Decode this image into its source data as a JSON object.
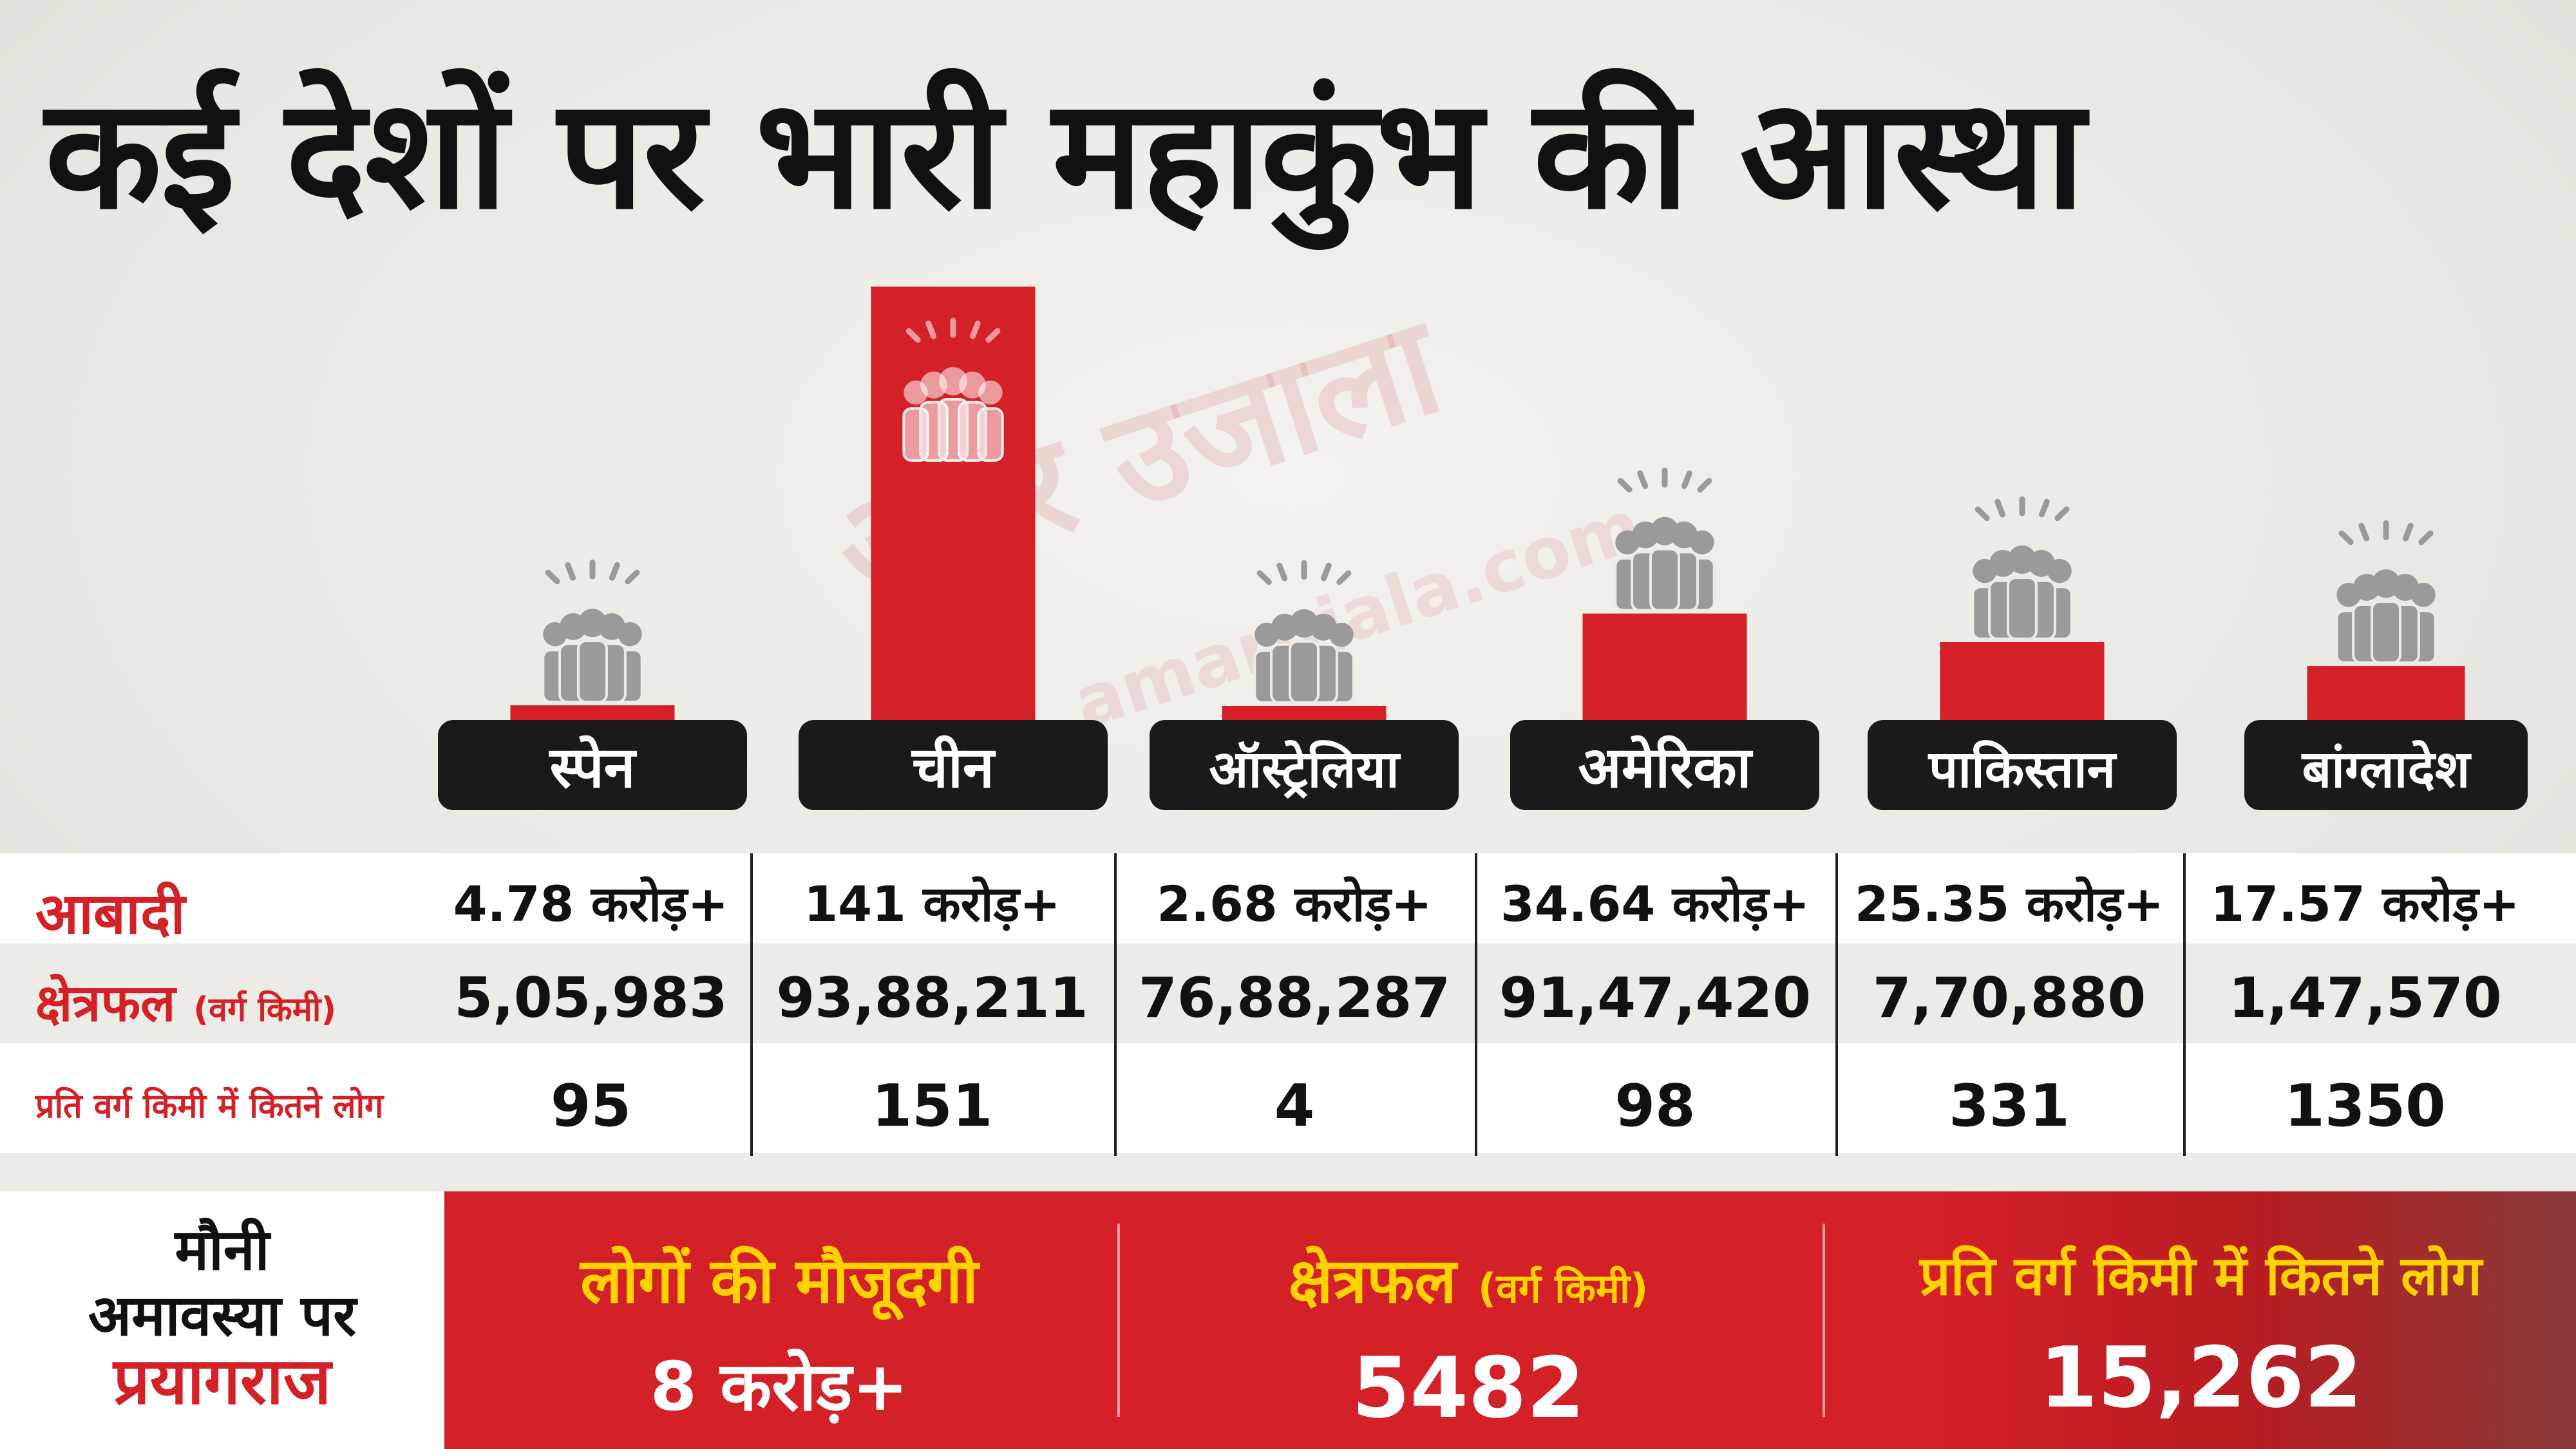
{
  "title": "कई देशों पर भारी महाकुंभ की आस्था",
  "watermark": {
    "brand": "अमर उजाला",
    "domain": "amarujala.com"
  },
  "colors": {
    "bar": "#d42027",
    "label_bg": "#1a1a1a",
    "label_text": "#ffffff",
    "accent_red": "#d42027",
    "accent_yellow": "#ffd200",
    "people_icon": "#9a9a9a"
  },
  "icons": {
    "crowd": "people-group-icon"
  },
  "chart_data": {
    "type": "bar",
    "categories": [
      "स्पेन",
      "चीन",
      "ऑस्ट्रेलिया",
      "अमेरिका",
      "पाकिस्तान",
      "बांग्लादेश"
    ],
    "values": [
      4.78,
      141,
      2.68,
      34.64,
      25.35,
      17.57
    ]
  },
  "table": {
    "rows": [
      {
        "label": "आबादी",
        "unit": "",
        "values": [
          "4.78 करोड़+",
          "141 करोड़+",
          "2.68 करोड़+",
          "34.64 करोड़+",
          "25.35 करोड़+",
          "17.57 करोड़+"
        ]
      },
      {
        "label": "क्षेत्रफल",
        "unit": "(वर्ग किमी)",
        "values": [
          "5,05,983",
          "93,88,211",
          "76,88,287",
          "91,47,420",
          "7,70,880",
          "1,47,570"
        ]
      },
      {
        "label": "प्रति वर्ग किमी में कितने लोग",
        "unit": "",
        "values": [
          "95",
          "151",
          "4",
          "98",
          "331",
          "1350"
        ]
      }
    ]
  },
  "bottom": {
    "left_lines": [
      "मौनी",
      "अमावस्या पर",
      "प्रयागराज"
    ],
    "stats": [
      {
        "label": "लोगों की मौजूदगी",
        "unit": "",
        "value": "8 करोड़+"
      },
      {
        "label": "क्षेत्रफल",
        "unit": "(वर्ग किमी)",
        "value": "5482"
      },
      {
        "label": "प्रति वर्ग किमी में कितने लोग",
        "unit": "",
        "value": "15,262"
      }
    ]
  }
}
